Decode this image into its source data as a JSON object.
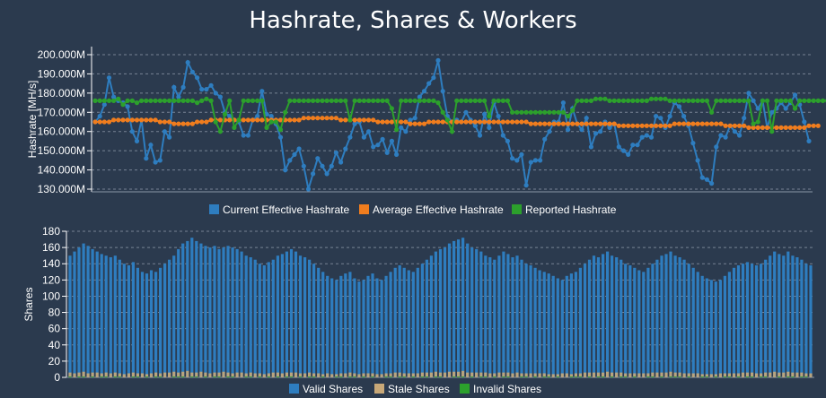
{
  "title": "Hashrate, Shares & Workers",
  "colors": {
    "background": "#2b3a4e",
    "grid": "#8a96a6",
    "current": "#2e7dbf",
    "average": "#f07d1e",
    "reported": "#2ca02c",
    "valid": "#2e7dbf",
    "stale": "#c8a878",
    "invalid": "#2ca02c"
  },
  "chart_data": [
    {
      "type": "line",
      "ylabel": "Hashrate [MH/s]",
      "ylim": [
        120,
        210
      ],
      "yticks": [
        130,
        140,
        150,
        160,
        170,
        180,
        190,
        200
      ],
      "ytick_labels": [
        "130.000M",
        "140.000M",
        "150.000M",
        "160.000M",
        "170.000M",
        "180.000M",
        "190.000M",
        "200.000M"
      ],
      "grid": true,
      "legend": "bottom",
      "series": [
        {
          "name": "Current Effective Hashrate",
          "color": "current",
          "values": [
            165,
            168,
            174,
            188,
            178,
            176,
            175,
            173,
            160,
            155,
            166,
            146,
            153,
            144,
            145,
            160,
            157,
            183,
            178,
            183,
            196,
            191,
            188,
            182,
            182,
            184,
            180,
            178,
            170,
            168,
            166,
            165,
            158,
            158,
            166,
            168,
            181,
            169,
            168,
            164,
            157,
            140,
            145,
            148,
            151,
            142,
            130,
            138,
            146,
            142,
            138,
            142,
            149,
            144,
            151,
            157,
            164,
            165,
            157,
            160,
            152,
            153,
            156,
            149,
            155,
            148,
            162,
            160,
            166,
            167,
            178,
            181,
            185,
            188,
            197,
            181,
            168,
            165,
            166,
            165,
            170,
            166,
            163,
            158,
            169,
            162,
            175,
            168,
            158,
            155,
            146,
            145,
            148,
            132,
            144,
            145,
            145,
            156,
            160,
            165,
            165,
            175,
            161,
            172,
            164,
            161,
            167,
            152,
            159,
            160,
            165,
            162,
            164,
            152,
            150,
            148,
            153,
            153,
            157,
            158,
            157,
            168,
            167,
            162,
            168,
            175,
            173,
            168,
            163,
            154,
            145,
            136,
            135,
            133,
            152,
            158,
            157,
            163,
            160,
            158,
            167,
            180,
            176,
            172,
            176,
            162,
            170,
            172,
            175,
            172,
            175,
            179,
            174,
            165,
            155
          ]
        },
        {
          "name": "Average Effective Hashrate",
          "color": "average",
          "values": [
            165,
            165,
            165,
            165,
            166,
            166,
            166,
            166,
            166,
            166,
            166,
            166,
            166,
            166,
            165,
            165,
            165,
            164,
            164,
            164,
            164,
            164,
            165,
            165,
            165,
            166,
            166,
            166,
            166,
            166,
            166,
            166,
            166,
            166,
            166,
            166,
            166,
            166,
            166,
            166,
            166,
            166,
            166,
            166,
            166,
            167,
            167,
            167,
            167,
            167,
            167,
            167,
            167,
            166,
            166,
            166,
            166,
            166,
            166,
            166,
            166,
            165,
            165,
            165,
            165,
            165,
            165,
            165,
            164,
            164,
            164,
            164,
            165,
            165,
            165,
            165,
            165,
            165,
            165,
            165,
            165,
            165,
            165,
            165,
            165,
            165,
            165,
            165,
            165,
            165,
            165,
            165,
            165,
            165,
            164,
            164,
            164,
            164,
            164,
            164,
            164,
            164,
            164,
            164,
            164,
            164,
            164,
            164,
            164,
            164,
            164,
            164,
            164,
            163,
            163,
            163,
            163,
            163,
            163,
            163,
            163,
            163,
            163,
            163,
            163,
            164,
            164,
            164,
            164,
            164,
            164,
            164,
            164,
            164,
            164,
            164,
            163,
            163,
            163,
            163,
            163,
            162,
            162,
            162,
            162,
            162,
            162,
            162,
            162,
            162,
            162,
            162,
            162,
            162,
            163,
            163,
            163
          ]
        },
        {
          "name": "Reported Hashrate",
          "color": "reported",
          "values": [
            176,
            176,
            176,
            176,
            176,
            177,
            174,
            176,
            176,
            175,
            176,
            176,
            176,
            176,
            176,
            176,
            176,
            176,
            176,
            176,
            176,
            176,
            175,
            176,
            177,
            176,
            165,
            160,
            169,
            176,
            162,
            166,
            176,
            176,
            176,
            176,
            176,
            162,
            165,
            165,
            161,
            170,
            176,
            176,
            176,
            176,
            176,
            176,
            176,
            176,
            176,
            176,
            176,
            176,
            176,
            166,
            176,
            176,
            176,
            176,
            176,
            176,
            176,
            176,
            172,
            161,
            176,
            176,
            176,
            176,
            176,
            176,
            176,
            176,
            175,
            170,
            166,
            160,
            176,
            176,
            176,
            176,
            176,
            176,
            176,
            168,
            176,
            176,
            176,
            176,
            170,
            170,
            170,
            170,
            170,
            170,
            170,
            170,
            170,
            170,
            170,
            170,
            168,
            171,
            176,
            176,
            176,
            176,
            177,
            177,
            177,
            176,
            176,
            176,
            176,
            176,
            176,
            176,
            176,
            176,
            177,
            177,
            177,
            177,
            176,
            176,
            176,
            176,
            176,
            176,
            176,
            176,
            176,
            170,
            176,
            176,
            176,
            176,
            176,
            176,
            176,
            176,
            164,
            165,
            176,
            176,
            160,
            176,
            176,
            176,
            176,
            172,
            176,
            176,
            176,
            176,
            176,
            176,
            176
          ]
        }
      ]
    },
    {
      "type": "bar",
      "ylabel": "Shares",
      "ylim": [
        0,
        180
      ],
      "yticks": [
        0,
        20,
        40,
        60,
        80,
        100,
        120,
        140,
        160,
        180
      ],
      "ytick_labels": [
        "0",
        "20",
        "40",
        "60",
        "80",
        "100",
        "120",
        "140",
        "160",
        "180"
      ],
      "grid": true,
      "legend": "bottom",
      "series": [
        {
          "name": "Valid Shares",
          "color": "valid",
          "values": [
            150,
            155,
            160,
            165,
            162,
            158,
            155,
            152,
            150,
            148,
            150,
            145,
            140,
            138,
            142,
            135,
            130,
            128,
            132,
            130,
            135,
            140,
            145,
            150,
            158,
            165,
            168,
            172,
            168,
            165,
            162,
            160,
            162,
            158,
            160,
            162,
            160,
            158,
            155,
            150,
            148,
            145,
            140,
            138,
            142,
            145,
            150,
            152,
            155,
            158,
            155,
            150,
            148,
            145,
            140,
            135,
            130,
            125,
            122,
            120,
            125,
            128,
            130,
            122,
            118,
            120,
            125,
            128,
            122,
            120,
            125,
            130,
            135,
            138,
            135,
            132,
            130,
            135,
            140,
            145,
            150,
            155,
            158,
            160,
            165,
            168,
            170,
            172,
            165,
            160,
            158,
            155,
            150,
            148,
            145,
            150,
            155,
            152,
            148,
            150,
            145,
            140,
            138,
            135,
            132,
            130,
            128,
            125,
            122,
            120,
            125,
            128,
            130,
            135,
            140,
            145,
            150,
            148,
            152,
            155,
            150,
            148,
            145,
            140,
            138,
            135,
            132,
            130,
            135,
            140,
            145,
            150,
            152,
            155,
            150,
            148,
            145,
            140,
            135,
            130,
            125,
            122,
            120,
            118,
            120,
            125,
            130,
            135,
            138,
            140,
            142,
            140,
            138,
            140,
            145,
            150,
            155,
            152,
            150,
            155,
            150,
            148,
            145,
            140,
            138
          ]
        },
        {
          "name": "Stale Shares",
          "color": "stale",
          "values": [
            6,
            5,
            6,
            7,
            5,
            6,
            6,
            5,
            6,
            5,
            6,
            5,
            4,
            5,
            6,
            5,
            5,
            4,
            5,
            6,
            5,
            6,
            6,
            7,
            6,
            7,
            8,
            6,
            6,
            7,
            6,
            5,
            6,
            6,
            7,
            6,
            5,
            6,
            6,
            5,
            6,
            5,
            5,
            4,
            5,
            6,
            6,
            5,
            6,
            6,
            6,
            5,
            5,
            6,
            5,
            5,
            4,
            5,
            4,
            4,
            5,
            5,
            6,
            5,
            4,
            5,
            5,
            5,
            4,
            4,
            5,
            5,
            6,
            6,
            5,
            5,
            5,
            5,
            6,
            6,
            6,
            7,
            6,
            6,
            7,
            7,
            7,
            8,
            6,
            6,
            6,
            6,
            6,
            5,
            5,
            6,
            6,
            6,
            5,
            6,
            5,
            5,
            5,
            5,
            5,
            5,
            4,
            4,
            4,
            5,
            5,
            4,
            5,
            5,
            6,
            6,
            6,
            6,
            6,
            7,
            6,
            6,
            6,
            5,
            5,
            5,
            5,
            5,
            5,
            6,
            6,
            6,
            6,
            7,
            6,
            6,
            5,
            5,
            5,
            5,
            4,
            4,
            4,
            4,
            5,
            5,
            5,
            5,
            5,
            6,
            6,
            6,
            5,
            5,
            6,
            6,
            7,
            6,
            6,
            7,
            6,
            6,
            6,
            5,
            5
          ]
        },
        {
          "name": "Invalid Shares",
          "color": "invalid",
          "values": [
            1,
            0,
            1,
            1,
            0,
            1,
            0,
            1,
            1,
            0,
            1,
            1,
            0,
            0,
            1,
            1,
            0,
            1,
            0,
            1,
            1,
            0,
            0,
            1,
            1,
            1,
            0,
            1,
            1,
            0,
            1,
            0,
            1,
            1,
            0,
            1,
            1,
            0,
            0,
            1,
            1,
            0,
            1,
            0,
            1,
            0,
            1,
            0,
            1,
            1,
            0,
            1,
            0,
            1,
            1,
            0,
            1,
            0,
            0,
            1,
            1,
            0,
            1,
            1,
            0,
            1,
            0,
            1,
            0,
            0,
            1,
            1,
            0,
            1,
            1,
            0,
            1,
            0,
            1,
            1,
            0,
            1,
            1,
            0,
            0,
            1,
            1,
            1,
            0,
            1,
            0,
            1,
            1,
            0,
            1,
            0,
            1,
            1,
            0,
            0,
            1,
            1,
            0,
            1,
            0,
            1,
            1,
            0,
            1,
            0,
            0,
            1,
            1,
            1,
            0,
            1,
            0,
            1,
            1,
            0,
            1,
            0,
            1,
            1,
            0,
            1,
            0,
            0,
            1,
            1,
            0,
            1,
            0,
            1,
            1,
            1,
            0,
            1,
            0,
            0,
            1,
            1,
            0,
            1,
            0,
            1,
            1,
            0,
            1,
            0,
            1,
            1,
            0,
            1,
            1,
            0,
            0,
            1,
            0,
            1,
            1,
            0,
            1,
            1,
            0
          ]
        }
      ]
    }
  ]
}
